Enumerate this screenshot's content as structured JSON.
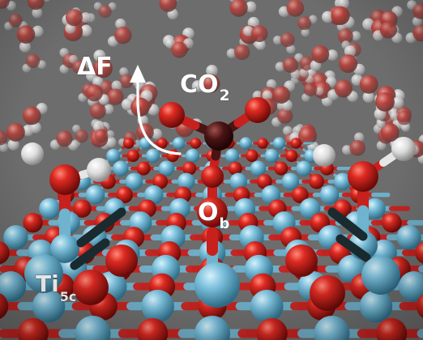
{
  "labels": {
    "delta_f": "ΔF",
    "co2_main": "CO",
    "co2_sub": "2",
    "ob_main": "O",
    "ob_sub": "b",
    "ti_main": "Ti",
    "ti_sub": "5c"
  },
  "colors": {
    "background": "#6d6d6d",
    "oxygen": "#c8201c",
    "titanium": "#6fb3cf",
    "hydrogen": "#e6e6e6",
    "carbon": "#4a1414",
    "water_haze": "#b9b9b9"
  }
}
